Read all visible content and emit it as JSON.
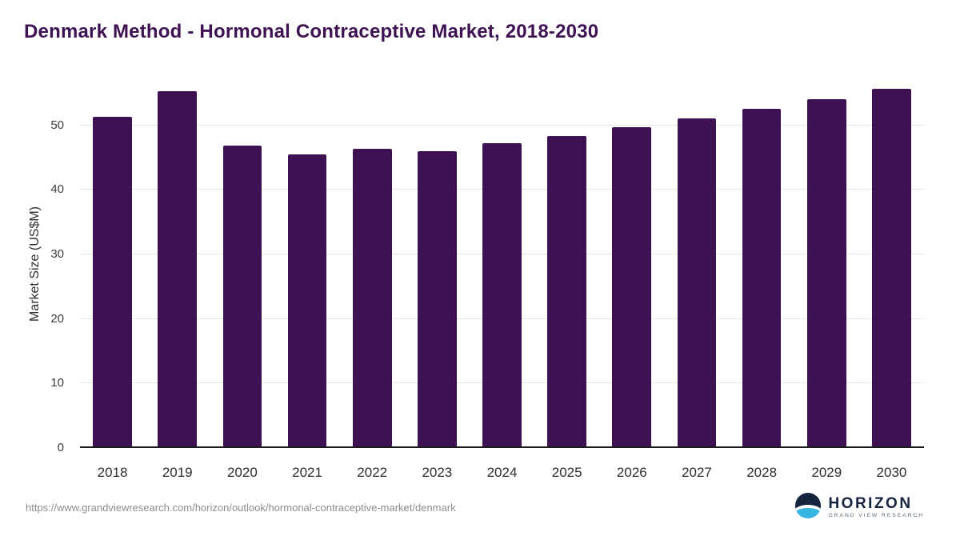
{
  "title": "Denmark Method - Hormonal Contraceptive Market, 2018-2030",
  "footer": {
    "source_url": "https://www.grandviewresearch.com/horizon/outlook/hormonal-contraceptive-market/denmark",
    "logo_title": "HORIZON",
    "logo_subtitle": "GRAND VIEW RESEARCH"
  },
  "colors": {
    "bar": "#3d1152",
    "title": "#3d1152",
    "logo": "#14243e",
    "logo_horizon_blue": "#38b6e3"
  },
  "chart_data": {
    "type": "bar",
    "title": "Denmark Method - Hormonal Contraceptive Market, 2018-2030",
    "categories": [
      "2018",
      "2019",
      "2020",
      "2021",
      "2022",
      "2023",
      "2024",
      "2025",
      "2026",
      "2027",
      "2028",
      "2029",
      "2030"
    ],
    "values": [
      51.3,
      55.3,
      46.8,
      45.5,
      46.4,
      46.0,
      47.2,
      48.3,
      49.7,
      51.1,
      52.6,
      54.0,
      55.6
    ],
    "xlabel": "",
    "ylabel": "Market Size (US$M)",
    "ylim": [
      0,
      57
    ],
    "yticks": [
      0,
      10,
      20,
      30,
      40,
      50
    ],
    "grid": true,
    "legend": "none"
  }
}
